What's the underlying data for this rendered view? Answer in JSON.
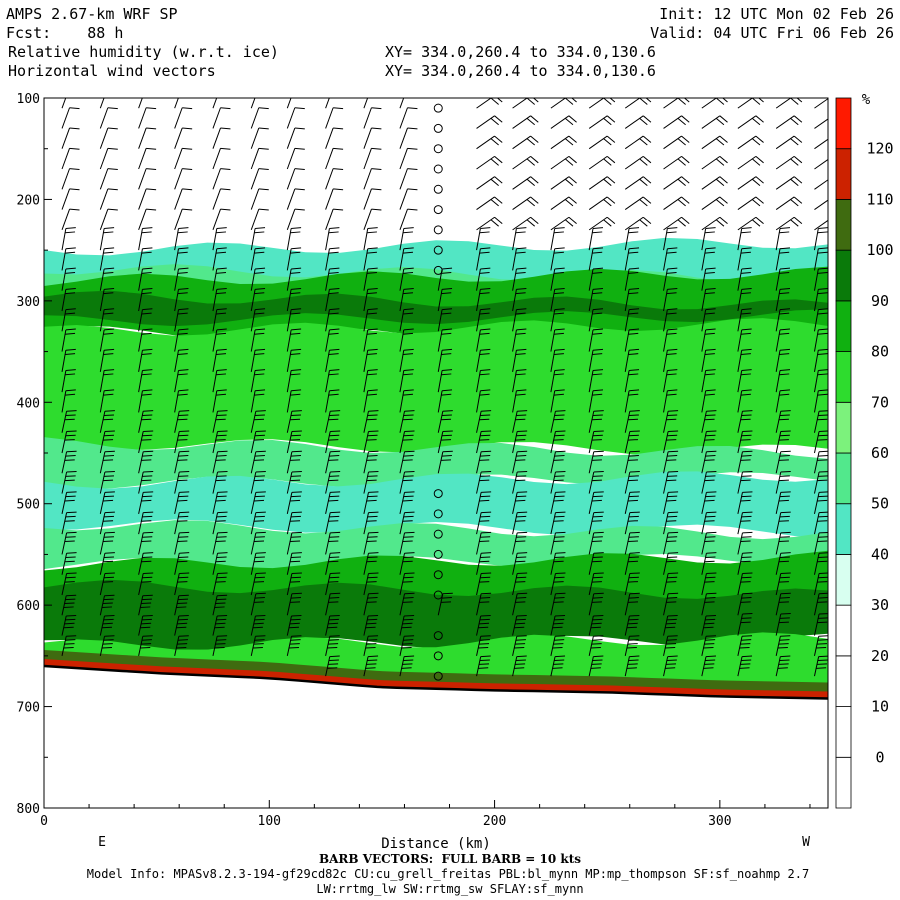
{
  "header": {
    "model_title": "AMPS 2.67-km WRF SP",
    "forecast": "Fcst:    88 h",
    "field1": "Relative humidity (w.r.t. ice)",
    "field2": "Horizontal wind vectors",
    "xy1": "XY= 334.0,260.4 to 334.0,130.6",
    "xy2": "XY= 334.0,260.4 to 334.0,130.6",
    "init": "Init: 12 UTC Mon 02 Feb 26",
    "valid": "Valid: 04 UTC Fri 06 Feb 26"
  },
  "footer": {
    "barb_note": "BARB VECTORS:  FULL BARB = 10 kts",
    "model_info": "Model Info: MPASv8.2.3-194-gf29cd82c CU:cu_grell_freitas PBL:bl_mynn MP:mp_thompson SF:sf_noahmp 2.7",
    "model_info2": "LW:rrtmg_lw SW:rrtmg_sw SFLAY:sf_mynn"
  },
  "chart_data": {
    "type": "heatmap",
    "xlabel": "Distance (km)",
    "ylabel": "",
    "x_ticks": [
      0,
      100,
      200,
      300
    ],
    "xlim": [
      0,
      348
    ],
    "y_ticks": [
      100,
      200,
      300,
      400,
      500,
      600,
      700,
      800
    ],
    "ylim": [
      800,
      100
    ],
    "y_inverted": true,
    "x_end_labels": {
      "left": "E",
      "right": "W"
    },
    "colorbar": {
      "unit": "%",
      "levels": [
        0,
        10,
        20,
        30,
        40,
        50,
        60,
        70,
        80,
        90,
        100,
        110,
        120
      ],
      "colors": [
        "#ffffff",
        "#ffffff",
        "#ffffff",
        "#ffffff",
        "#d8fff0",
        "#52e6c4",
        "#52e88c",
        "#7cf27c",
        "#2edc2e",
        "#10b010",
        "#0a7a0a",
        "#3f6b10",
        "#cc2200",
        "#ff1a00"
      ]
    },
    "terrain_pressure": [
      {
        "x": 0,
        "p": 660
      },
      {
        "x": 50,
        "p": 667
      },
      {
        "x": 100,
        "p": 672
      },
      {
        "x": 150,
        "p": 681
      },
      {
        "x": 200,
        "p": 684
      },
      {
        "x": 250,
        "p": 686
      },
      {
        "x": 300,
        "p": 690
      },
      {
        "x": 348,
        "p": 692
      }
    ],
    "humidity_layers": [
      {
        "p_top": 250,
        "p_bot": 285,
        "level": 40
      },
      {
        "p_top": 268,
        "p_bot": 300,
        "level": 50
      },
      {
        "p_top": 280,
        "p_bot": 330,
        "level": 80
      },
      {
        "p_top": 295,
        "p_bot": 320,
        "level": 90
      },
      {
        "p_top": 330,
        "p_bot": 440,
        "level": 70
      },
      {
        "p_top": 440,
        "p_bot": 480,
        "level": 50
      },
      {
        "p_top": 480,
        "p_bot": 520,
        "level": 40
      },
      {
        "p_top": 520,
        "p_bot": 560,
        "level": 50
      },
      {
        "p_top": 560,
        "p_bot": 620,
        "level": 80
      },
      {
        "p_top": 580,
        "p_bot": 640,
        "level": 90
      },
      {
        "p_top": 640,
        "p_bot": 680,
        "level": 70
      }
    ],
    "barb_columns_x": [
      8,
      25,
      42,
      58,
      75,
      92,
      108,
      125,
      142,
      158,
      175,
      192,
      208,
      225,
      242,
      258,
      275,
      292,
      308,
      325,
      342
    ],
    "calm_column_x": 175
  }
}
